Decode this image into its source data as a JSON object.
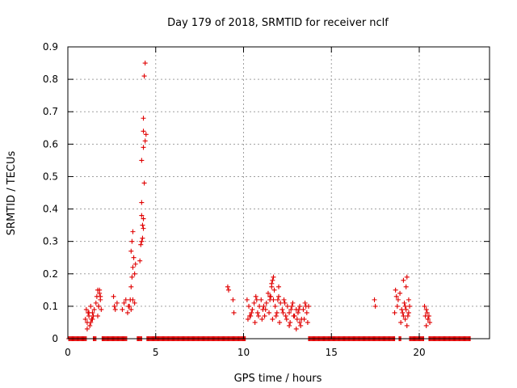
{
  "chart_data": {
    "type": "scatter",
    "title": "Day 179 of 2018, SRMTID for receiver nclf",
    "xlabel": "GPS time / hours",
    "ylabel": "SRMTID / TECUs",
    "xlim": [
      0,
      24
    ],
    "ylim": [
      0,
      0.9
    ],
    "xticks": [
      0,
      5,
      10,
      15,
      20
    ],
    "xtick_labels": [
      "0",
      "5",
      "10",
      "15",
      "20"
    ],
    "yticks": [
      0,
      0.1,
      0.2,
      0.3,
      0.4,
      0.5,
      0.6,
      0.7,
      0.8,
      0.9
    ],
    "ytick_labels": [
      "0",
      "0.1",
      "0.2",
      "0.3",
      "0.4",
      "0.5",
      "0.6",
      "0.7",
      "0.8",
      "0.9"
    ],
    "grid": true,
    "marker": "+",
    "marker_color": "#e00000",
    "zero_segments": [
      [
        0.05,
        1.05
      ],
      [
        1.45,
        1.6
      ],
      [
        1.95,
        3.35
      ],
      [
        3.95,
        4.2
      ],
      [
        4.5,
        10.1
      ],
      [
        13.7,
        18.6
      ],
      [
        18.85,
        18.95
      ],
      [
        19.45,
        20.25
      ],
      [
        20.55,
        22.9
      ]
    ],
    "zero_step": 0.05,
    "series": [
      {
        "name": "SRMTID",
        "x": [
          1.0,
          1.05,
          1.1,
          1.15,
          1.2,
          1.25,
          1.3,
          1.35,
          1.4,
          1.45,
          1.5,
          1.1,
          1.2,
          1.3,
          1.4,
          1.6,
          1.65,
          1.7,
          1.75,
          1.8,
          1.85,
          1.9,
          1.7,
          1.75,
          1.8,
          1.85,
          2.6,
          2.65,
          2.7,
          2.8,
          3.1,
          3.2,
          3.3,
          3.4,
          3.5,
          3.6,
          3.7,
          3.8,
          3.45,
          3.55,
          3.6,
          3.65,
          3.7,
          3.75,
          3.8,
          3.85,
          3.6,
          3.65,
          3.7,
          4.1,
          4.15,
          4.2,
          4.25,
          4.3,
          4.2,
          4.35,
          4.2,
          4.3,
          4.4,
          4.3,
          4.45,
          4.3,
          4.35,
          4.4,
          4.2,
          4.25,
          4.3,
          9.1,
          9.15,
          9.4,
          9.45,
          10.2,
          10.3,
          10.4,
          10.5,
          10.6,
          10.7,
          10.8,
          10.9,
          11.0,
          11.1,
          11.2,
          11.3,
          11.4,
          11.5,
          11.6,
          11.7,
          11.8,
          11.9,
          12.0,
          12.1,
          12.2,
          12.3,
          12.4,
          12.5,
          12.6,
          12.7,
          12.8,
          12.9,
          13.0,
          13.1,
          13.2,
          13.3,
          13.4,
          13.5,
          13.6,
          13.7,
          10.25,
          10.45,
          10.65,
          10.85,
          11.05,
          11.25,
          11.45,
          11.65,
          11.85,
          12.05,
          12.25,
          12.45,
          12.65,
          12.85,
          13.05,
          13.25,
          13.45,
          13.65,
          10.35,
          10.75,
          11.15,
          11.55,
          11.95,
          12.35,
          12.75,
          13.15,
          13.55,
          11.5,
          11.6,
          11.7,
          11.65,
          11.75,
          12.0,
          12.6,
          13.0,
          13.2,
          17.4,
          17.45,
          17.5,
          18.6,
          18.65,
          18.7,
          18.75,
          18.8,
          18.9,
          19.0,
          19.1,
          19.2,
          19.3,
          19.4,
          19.05,
          19.15,
          19.25,
          19.35,
          19.45,
          19.2,
          19.25,
          19.1,
          19.3,
          18.95,
          19.4,
          20.3,
          20.35,
          20.4,
          20.45,
          20.5,
          20.55,
          20.6,
          20.4,
          20.5
        ],
        "y": [
          0.06,
          0.09,
          0.05,
          0.08,
          0.07,
          0.04,
          0.1,
          0.06,
          0.08,
          0.07,
          0.09,
          0.03,
          0.08,
          0.05,
          0.06,
          0.11,
          0.13,
          0.15,
          0.1,
          0.14,
          0.12,
          0.09,
          0.07,
          0.1,
          0.15,
          0.13,
          0.13,
          0.1,
          0.09,
          0.11,
          0.09,
          0.11,
          0.12,
          0.08,
          0.1,
          0.09,
          0.12,
          0.11,
          0.1,
          0.12,
          0.16,
          0.19,
          0.22,
          0.25,
          0.2,
          0.23,
          0.27,
          0.3,
          0.33,
          0.24,
          0.29,
          0.3,
          0.31,
          0.34,
          0.42,
          0.48,
          0.55,
          0.59,
          0.61,
          0.64,
          0.63,
          0.68,
          0.81,
          0.85,
          0.38,
          0.35,
          0.37,
          0.16,
          0.15,
          0.12,
          0.08,
          0.12,
          0.1,
          0.07,
          0.09,
          0.11,
          0.13,
          0.08,
          0.1,
          0.12,
          0.09,
          0.07,
          0.11,
          0.14,
          0.13,
          0.16,
          0.12,
          0.1,
          0.08,
          0.13,
          0.11,
          0.09,
          0.12,
          0.07,
          0.1,
          0.08,
          0.09,
          0.11,
          0.07,
          0.09,
          0.08,
          0.1,
          0.06,
          0.09,
          0.11,
          0.08,
          0.1,
          0.06,
          0.08,
          0.05,
          0.07,
          0.06,
          0.09,
          0.08,
          0.06,
          0.07,
          0.05,
          0.08,
          0.06,
          0.05,
          0.07,
          0.06,
          0.04,
          0.06,
          0.05,
          0.07,
          0.12,
          0.1,
          0.13,
          0.12,
          0.11,
          0.1,
          0.09,
          0.1,
          0.12,
          0.17,
          0.19,
          0.18,
          0.15,
          0.16,
          0.04,
          0.03,
          0.05,
          0.0,
          0.12,
          0.1,
          0.08,
          0.15,
          0.13,
          0.1,
          0.12,
          0.14,
          0.09,
          0.07,
          0.1,
          0.19,
          0.12,
          0.08,
          0.11,
          0.09,
          0.07,
          0.1,
          0.06,
          0.16,
          0.18,
          0.04,
          0.05,
          0.08,
          0.1,
          0.07,
          0.09,
          0.08,
          0.06,
          0.07,
          0.05,
          0.04,
          0.06
        ]
      }
    ]
  }
}
